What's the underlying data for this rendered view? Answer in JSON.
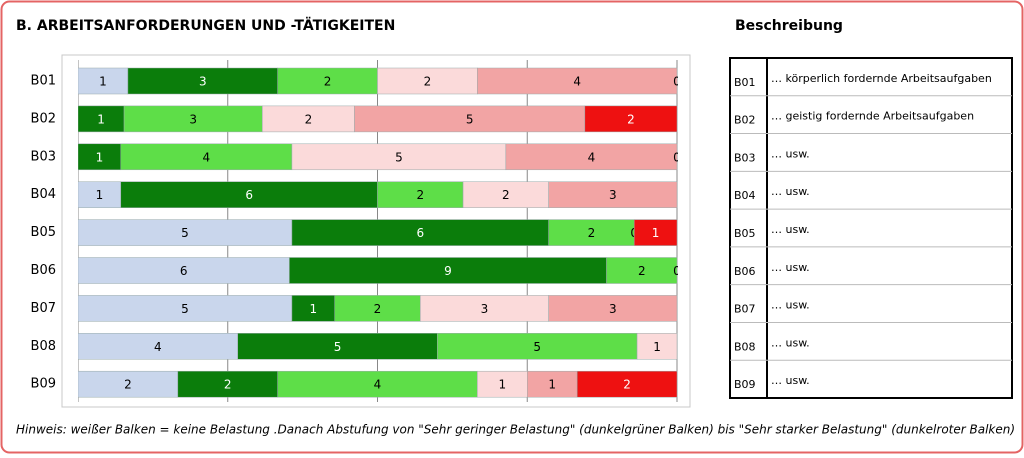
{
  "chart_data": {
    "type": "bar",
    "orientation": "horizontal",
    "stacked": "percent",
    "title": "B. ARBEITSANFORDERUNGEN UND -TÄTIGKEITEN",
    "categories": [
      "B01",
      "B02",
      "B03",
      "B04",
      "B05",
      "B06",
      "B07",
      "B08",
      "B09"
    ],
    "series": [
      {
        "color": "#c9d6ec",
        "values": [
          1,
          0,
          0,
          1,
          5,
          6,
          5,
          4,
          2
        ]
      },
      {
        "color": "#0b7d0b",
        "values": [
          3,
          1,
          1,
          6,
          6,
          9,
          1,
          5,
          2
        ]
      },
      {
        "color": "#5ede48",
        "values": [
          2,
          3,
          4,
          2,
          2,
          2,
          2,
          5,
          4
        ]
      },
      {
        "color": "#fbdada",
        "values": [
          2,
          2,
          5,
          2,
          null,
          0,
          3,
          1,
          1
        ]
      },
      {
        "color": "#f2a4a4",
        "values": [
          4,
          5,
          4,
          3,
          0,
          null,
          3,
          null,
          1
        ]
      },
      {
        "color": "#ee1111",
        "values": [
          0,
          2,
          0,
          null,
          1,
          null,
          null,
          null,
          2
        ]
      }
    ],
    "xlim": [
      0,
      100
    ],
    "xticks": [
      0,
      25,
      50,
      75,
      100
    ],
    "grid": true,
    "note": "Hinweis: weißer Balken = keine Belastung .Danach Abstufung von \"Sehr geringer Belastung\" (dunkelgrüner Balken) bis \"Sehr starker Belastung\" (dunkelroter Balken)"
  },
  "description": {
    "title": "Beschreibung",
    "rows": [
      {
        "id": "B01",
        "text": "… körperlich fordernde Arbeitsaufgaben"
      },
      {
        "id": "B02",
        "text": "… geistig fordernde Arbeitsaufgaben"
      },
      {
        "id": "B03",
        "text": "… usw."
      },
      {
        "id": "B04",
        "text": "… usw."
      },
      {
        "id": "B05",
        "text": "… usw."
      },
      {
        "id": "B06",
        "text": "… usw."
      },
      {
        "id": "B07",
        "text": "… usw."
      },
      {
        "id": "B08",
        "text": "… usw."
      },
      {
        "id": "B09",
        "text": "… usw."
      }
    ]
  }
}
